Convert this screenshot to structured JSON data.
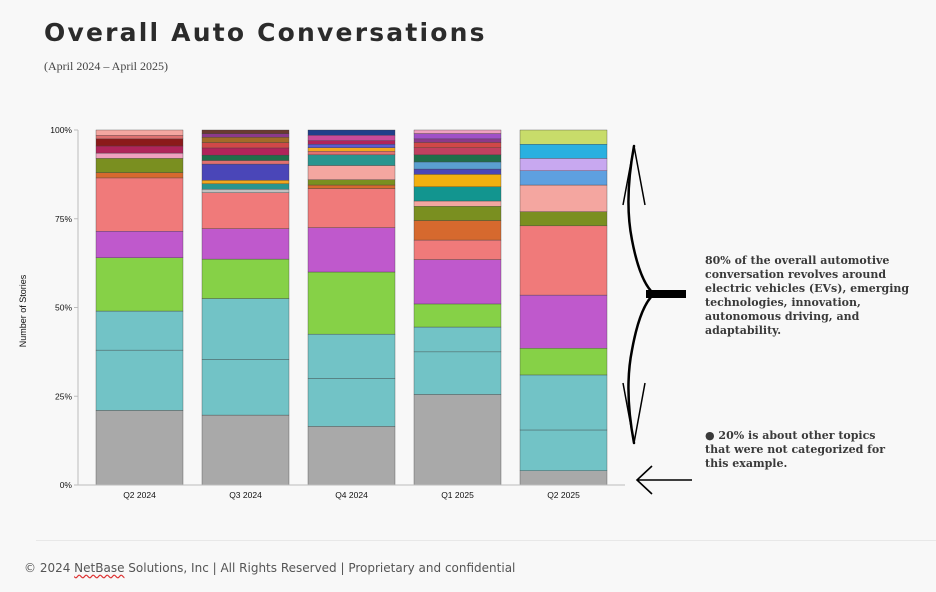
{
  "header": {
    "title": "Overall Auto Conversations",
    "subtitle": "(April 2024 – April 2025)"
  },
  "annotations": {
    "major": "80% of the overall automotive conversation revolves around electric vehicles (EVs), emerging technologies, innovation, autonomous driving, and adaptability.",
    "minor": "● 20% is about other topics that were not categorized for this example."
  },
  "footer": {
    "prefix": "© 2024 ",
    "brand": "NetBase",
    "suffix": " Solutions, Inc | All Rights Reserved | Proprietary and confidential"
  },
  "chart_data": {
    "type": "bar",
    "stacked": true,
    "ylabel": "Number of Stories",
    "xlabel": "",
    "ylim": [
      0,
      100
    ],
    "yticks": [
      "0%",
      "25%",
      "50%",
      "75%",
      "100%"
    ],
    "grid": false,
    "categories": [
      "Q2 2024",
      "Q3 2024",
      "Q4 2024",
      "Q1 2025",
      "Q2 2025"
    ],
    "stacks": [
      [
        {
          "value": 21,
          "color": "#a9a9a9"
        },
        {
          "value": 17,
          "color": "#72c3c6"
        },
        {
          "value": 11,
          "color": "#72c3c6"
        },
        {
          "value": 15,
          "color": "#86d147"
        },
        {
          "value": 7.5,
          "color": "#bf59cc"
        },
        {
          "value": 15,
          "color": "#f07a7a"
        },
        {
          "value": 1.5,
          "color": "#d6692e"
        },
        {
          "value": 4,
          "color": "#7a8f20"
        },
        {
          "value": 1.5,
          "color": "#f0a0c0"
        },
        {
          "value": 2,
          "color": "#b0245a"
        },
        {
          "value": 2,
          "color": "#8b1a1a"
        },
        {
          "value": 1,
          "color": "#e07070"
        },
        {
          "value": 1.5,
          "color": "#f4a6a0"
        }
      ],
      [
        {
          "value": 19.5,
          "color": "#a9a9a9"
        },
        {
          "value": 15.5,
          "color": "#72c3c6"
        },
        {
          "value": 17,
          "color": "#72c3c6"
        },
        {
          "value": 11,
          "color": "#86d147"
        },
        {
          "value": 8.5,
          "color": "#bf59cc"
        },
        {
          "value": 10,
          "color": "#f07a7a"
        },
        {
          "value": 1,
          "color": "#c0c0c0"
        },
        {
          "value": 1.5,
          "color": "#28958f"
        },
        {
          "value": 1,
          "color": "#f2a81e"
        },
        {
          "value": 4.5,
          "color": "#4a46b8"
        },
        {
          "value": 1,
          "color": "#e07070"
        },
        {
          "value": 1.5,
          "color": "#1f6e4a"
        },
        {
          "value": 2,
          "color": "#b0245a"
        },
        {
          "value": 1.5,
          "color": "#d04848"
        },
        {
          "value": 1.5,
          "color": "#a36a28"
        },
        {
          "value": 1,
          "color": "#8b3a8b"
        },
        {
          "value": 1,
          "color": "#6a3a30"
        }
      ],
      [
        {
          "value": 16.5,
          "color": "#a9a9a9"
        },
        {
          "value": 13.5,
          "color": "#72c3c6"
        },
        {
          "value": 12.5,
          "color": "#72c3c6"
        },
        {
          "value": 17.5,
          "color": "#86d147"
        },
        {
          "value": 12.5,
          "color": "#bf59cc"
        },
        {
          "value": 11,
          "color": "#f07a7a"
        },
        {
          "value": 1,
          "color": "#d6692e"
        },
        {
          "value": 1.5,
          "color": "#7a8f20"
        },
        {
          "value": 4,
          "color": "#f4a6a0"
        },
        {
          "value": 3,
          "color": "#28958f"
        },
        {
          "value": 1,
          "color": "#e07070"
        },
        {
          "value": 1,
          "color": "#f2a81e"
        },
        {
          "value": 1,
          "color": "#5b5bd0"
        },
        {
          "value": 1,
          "color": "#b0245a"
        },
        {
          "value": 1.5,
          "color": "#c84a9a"
        },
        {
          "value": 1.5,
          "color": "#1f3f8a"
        }
      ],
      [
        {
          "value": 25.5,
          "color": "#a9a9a9"
        },
        {
          "value": 12,
          "color": "#72c3c6"
        },
        {
          "value": 7,
          "color": "#72c3c6"
        },
        {
          "value": 6.5,
          "color": "#86d147"
        },
        {
          "value": 12.5,
          "color": "#bf59cc"
        },
        {
          "value": 5.5,
          "color": "#f07a7a"
        },
        {
          "value": 5.5,
          "color": "#d6692e"
        },
        {
          "value": 4,
          "color": "#7a8f20"
        },
        {
          "value": 1.5,
          "color": "#f4a6a0"
        },
        {
          "value": 4,
          "color": "#12958f"
        },
        {
          "value": 3.5,
          "color": "#f2b010"
        },
        {
          "value": 1.5,
          "color": "#4a46b8"
        },
        {
          "value": 2,
          "color": "#5aa0d0"
        },
        {
          "value": 2,
          "color": "#1f6e4a"
        },
        {
          "value": 2,
          "color": "#c04060"
        },
        {
          "value": 1.5,
          "color": "#d04848"
        },
        {
          "value": 1,
          "color": "#8b3a8b"
        },
        {
          "value": 1.5,
          "color": "#a050c8"
        },
        {
          "value": 1,
          "color": "#f0a0c0"
        }
      ],
      [
        {
          "value": 4,
          "color": "#a9a9a9"
        },
        {
          "value": 11.5,
          "color": "#72c3c6"
        },
        {
          "value": 15.5,
          "color": "#72c3c6"
        },
        {
          "value": 7.5,
          "color": "#86d147"
        },
        {
          "value": 15,
          "color": "#bf59cc"
        },
        {
          "value": 19.5,
          "color": "#f07a7a"
        },
        {
          "value": 4,
          "color": "#7a8f20"
        },
        {
          "value": 7.5,
          "color": "#f4a6a0"
        },
        {
          "value": 4,
          "color": "#5ea0e0"
        },
        {
          "value": 3.5,
          "color": "#c8a8f0"
        },
        {
          "value": 4,
          "color": "#2ab0e0"
        },
        {
          "value": 4,
          "color": "#c8dc6a"
        }
      ]
    ]
  }
}
